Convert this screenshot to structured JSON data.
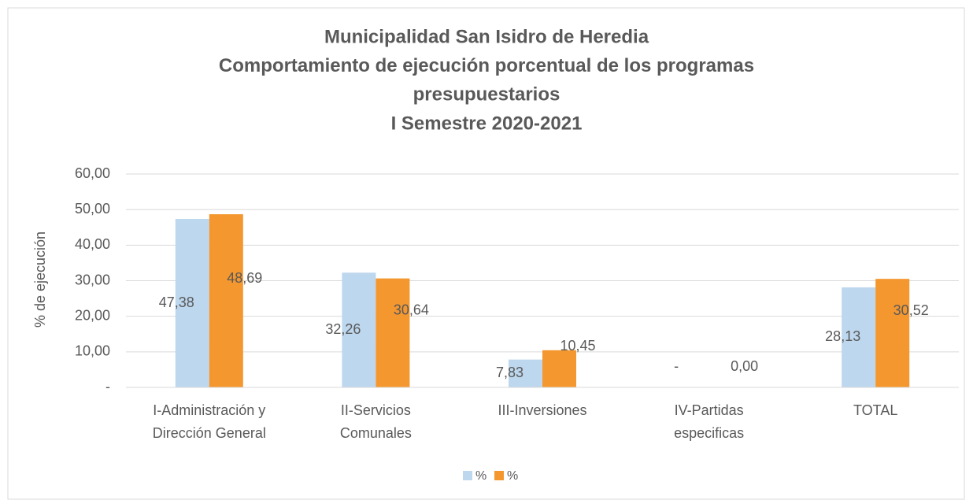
{
  "chart_data": {
    "type": "bar",
    "title": [
      "Municipalidad San Isidro de Heredia",
      "Comportamiento de ejecución porcentual de los programas",
      "presupuestarios",
      "I Semestre 2020-2021"
    ],
    "y_label": "% de ejecución",
    "categories": [
      [
        "I-Administración y",
        "Dirección General"
      ],
      [
        "II-Servicios",
        "Comunales"
      ],
      [
        "III-Inversiones"
      ],
      [
        "IV-Partidas",
        "especificas"
      ],
      [
        "TOTAL"
      ]
    ],
    "series": [
      {
        "name": "%",
        "color": "#bdd7ee",
        "values": [
          47.38,
          32.26,
          7.83,
          0,
          28.13
        ],
        "value_labels": [
          "47,38",
          "32,26",
          "7,83",
          "-",
          "28,13"
        ]
      },
      {
        "name": "%",
        "color": "#f4972f",
        "values": [
          48.69,
          30.64,
          10.45,
          0,
          30.52
        ],
        "value_labels": [
          "48,69",
          "30,64",
          "10,45",
          "0,00",
          "30,52"
        ]
      }
    ],
    "ylim": [
      0,
      60
    ],
    "yticks": [
      {
        "value": 0,
        "label": "-"
      },
      {
        "value": 10,
        "label": "10,00"
      },
      {
        "value": 20,
        "label": "20,00"
      },
      {
        "value": 30,
        "label": "30,00"
      },
      {
        "value": 40,
        "label": "40,00"
      },
      {
        "value": 50,
        "label": "50,00"
      },
      {
        "value": 60,
        "label": "60,00"
      }
    ],
    "grid": true,
    "legend": "bottom"
  }
}
